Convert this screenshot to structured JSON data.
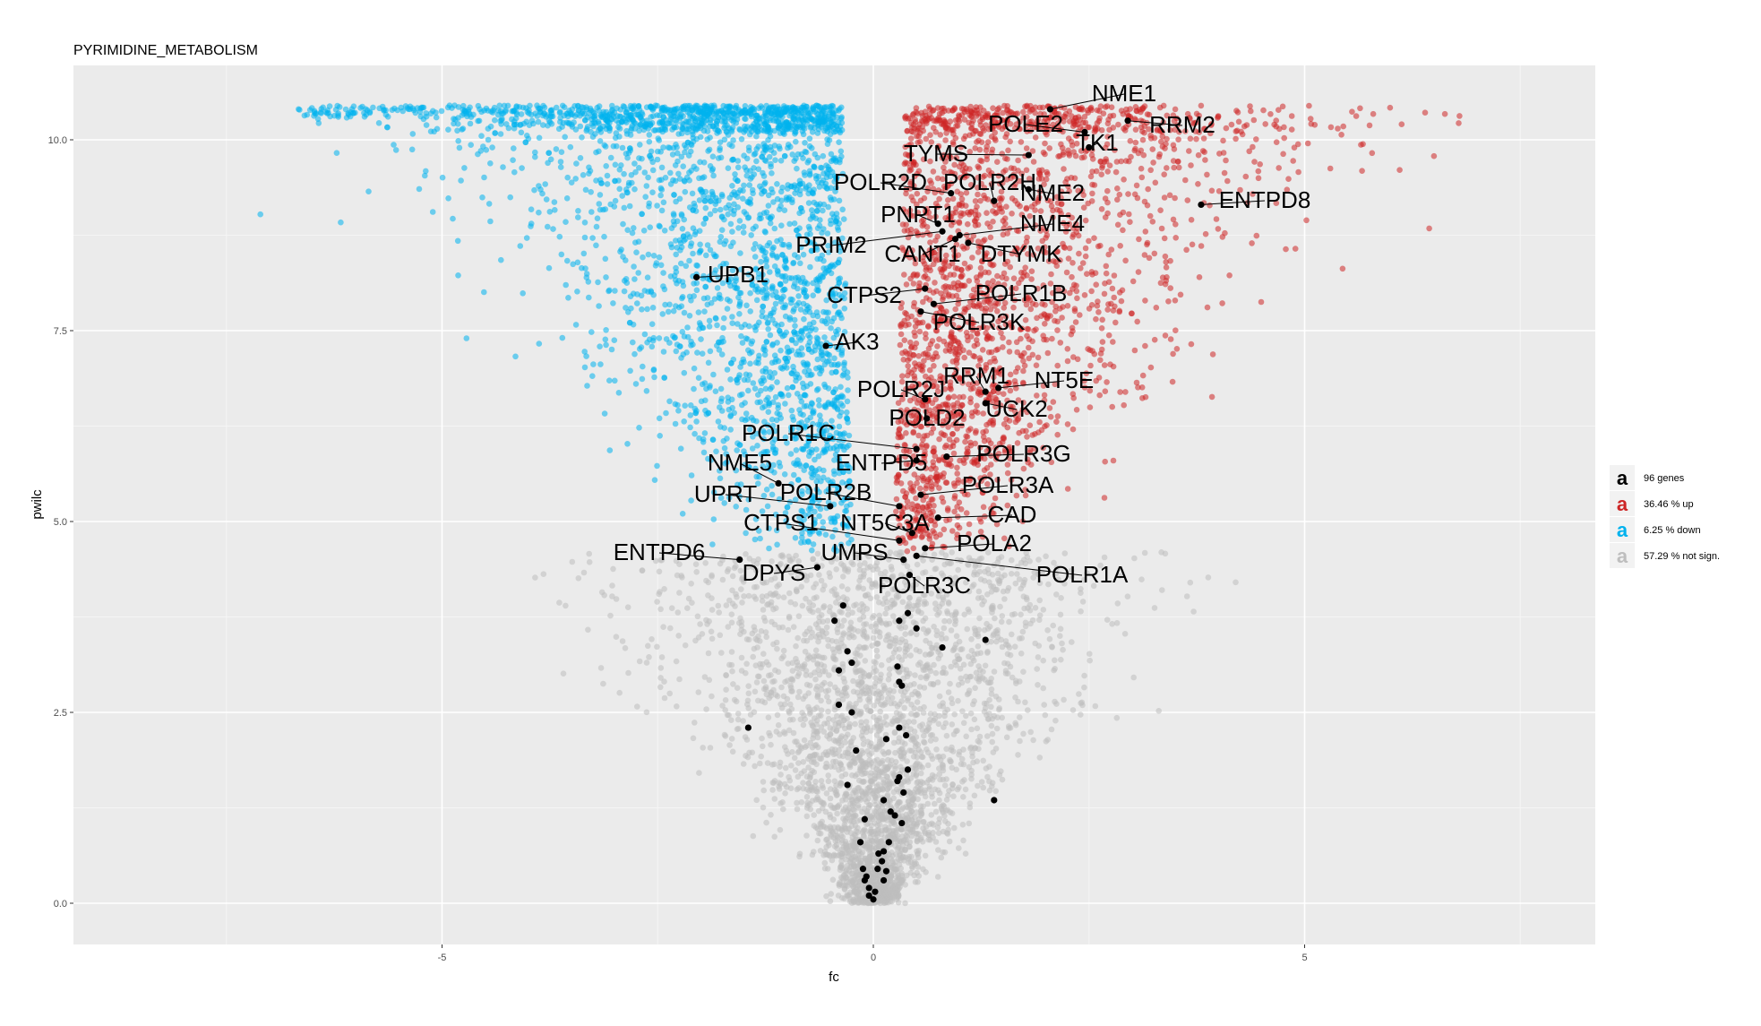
{
  "chart_data": {
    "type": "scatter",
    "title": "PYRIMIDINE_METABOLISM",
    "xlabel": "fc",
    "ylabel": "pwilc",
    "xlim": [
      -9.25,
      8.3
    ],
    "ylim": [
      -0.5,
      11.0
    ],
    "x_ticks": [
      {
        "value": -5,
        "label": "-5"
      },
      {
        "value": 0,
        "label": "0"
      },
      {
        "value": 5,
        "label": "5"
      }
    ],
    "y_ticks": [
      {
        "value": 0.0,
        "label": "0.0"
      },
      {
        "value": 2.5,
        "label": "2.5"
      },
      {
        "value": 5.0,
        "label": "5.0"
      },
      {
        "value": 7.5,
        "label": "7.5"
      },
      {
        "value": 10.0,
        "label": "10.0"
      }
    ],
    "grid": true,
    "legend_position": "right",
    "legend": [
      {
        "label": "96 genes",
        "color": "#000000"
      },
      {
        "label": "36.46 % up",
        "color": "#cd2626"
      },
      {
        "label": "6.25 % down",
        "color": "#00b2ee"
      },
      {
        "label": "57.29 % not sign.",
        "color": "#bebebe"
      }
    ],
    "colors": {
      "up": "#cd2626",
      "down": "#00b2ee",
      "not_sign": "#bebebe",
      "genes": "#000000"
    },
    "highlighted_genes": [
      {
        "name": "NME1",
        "x": 2.05,
        "y": 10.4
      },
      {
        "name": "POLE2",
        "x": 2.45,
        "y": 10.1
      },
      {
        "name": "RRM2",
        "x": 2.95,
        "y": 10.25
      },
      {
        "name": "TK1",
        "x": 2.5,
        "y": 9.9
      },
      {
        "name": "TYMS",
        "x": 1.8,
        "y": 9.8
      },
      {
        "name": "POLR2D",
        "x": 0.9,
        "y": 9.3
      },
      {
        "name": "POLR2H",
        "x": 1.4,
        "y": 9.2
      },
      {
        "name": "NME2",
        "x": 1.8,
        "y": 9.35
      },
      {
        "name": "ENTPD8",
        "x": 3.8,
        "y": 9.15
      },
      {
        "name": "PNPT1",
        "x": 0.75,
        "y": 8.9
      },
      {
        "name": "NME4",
        "x": 1.0,
        "y": 8.75
      },
      {
        "name": "PRIM2",
        "x": 0.8,
        "y": 8.8
      },
      {
        "name": "CANT1",
        "x": 0.95,
        "y": 8.7
      },
      {
        "name": "DTYMK",
        "x": 1.1,
        "y": 8.65
      },
      {
        "name": "UPB1",
        "x": -2.05,
        "y": 8.2
      },
      {
        "name": "CTPS2",
        "x": 0.6,
        "y": 8.05
      },
      {
        "name": "POLR1B",
        "x": 0.7,
        "y": 7.85
      },
      {
        "name": "POLR3K",
        "x": 0.55,
        "y": 7.75
      },
      {
        "name": "AK3",
        "x": -0.55,
        "y": 7.3
      },
      {
        "name": "RRM1",
        "x": 1.3,
        "y": 6.7
      },
      {
        "name": "NT5E",
        "x": 1.45,
        "y": 6.75
      },
      {
        "name": "POLR2J",
        "x": 0.6,
        "y": 6.6
      },
      {
        "name": "UCK2",
        "x": 1.3,
        "y": 6.55
      },
      {
        "name": "POLD2",
        "x": 0.62,
        "y": 6.35
      },
      {
        "name": "POLR1C",
        "x": 0.5,
        "y": 5.95
      },
      {
        "name": "POLR3G",
        "x": 0.85,
        "y": 5.85
      },
      {
        "name": "ENTPD5",
        "x": 0.5,
        "y": 5.8
      },
      {
        "name": "NME5",
        "x": -1.1,
        "y": 5.5
      },
      {
        "name": "POLR3A",
        "x": 0.55,
        "y": 5.35
      },
      {
        "name": "UPRT",
        "x": -0.5,
        "y": 5.2
      },
      {
        "name": "POLR2B",
        "x": 0.3,
        "y": 5.2
      },
      {
        "name": "CAD",
        "x": 0.75,
        "y": 5.05
      },
      {
        "name": "CTPS1",
        "x": 0.3,
        "y": 4.75
      },
      {
        "name": "NT5C3A",
        "x": 0.45,
        "y": 4.85
      },
      {
        "name": "POLA2",
        "x": 0.6,
        "y": 4.65
      },
      {
        "name": "ENTPD6",
        "x": -1.55,
        "y": 4.5
      },
      {
        "name": "UMPS",
        "x": 0.35,
        "y": 4.5
      },
      {
        "name": "POLR1A",
        "x": 0.5,
        "y": 4.55
      },
      {
        "name": "DPYS",
        "x": -0.65,
        "y": 4.4
      },
      {
        "name": "POLR3C",
        "x": 0.42,
        "y": 4.3
      }
    ],
    "label_positions_note": "",
    "extra_gene_points": [
      {
        "x": 0.3,
        "y": 3.7
      },
      {
        "x": 0.4,
        "y": 3.8
      },
      {
        "x": 0.5,
        "y": 3.6
      },
      {
        "x": -0.35,
        "y": 3.9
      },
      {
        "x": -0.45,
        "y": 3.7
      },
      {
        "x": 1.3,
        "y": 3.45
      },
      {
        "x": 0.8,
        "y": 3.35
      },
      {
        "x": -0.3,
        "y": 3.3
      },
      {
        "x": 0.28,
        "y": 3.1
      },
      {
        "x": -0.25,
        "y": 3.15
      },
      {
        "x": -0.4,
        "y": 3.05
      },
      {
        "x": 0.3,
        "y": 2.9
      },
      {
        "x": 0.33,
        "y": 2.85
      },
      {
        "x": -0.4,
        "y": 2.6
      },
      {
        "x": -0.25,
        "y": 2.5
      },
      {
        "x": 0.3,
        "y": 2.3
      },
      {
        "x": 0.38,
        "y": 2.2
      },
      {
        "x": -1.45,
        "y": 2.3
      },
      {
        "x": 0.15,
        "y": 2.15
      },
      {
        "x": -0.2,
        "y": 2.0
      },
      {
        "x": 0.4,
        "y": 1.75
      },
      {
        "x": 0.28,
        "y": 1.6
      },
      {
        "x": 0.3,
        "y": 1.65
      },
      {
        "x": -0.3,
        "y": 1.55
      },
      {
        "x": 0.35,
        "y": 1.45
      },
      {
        "x": 0.12,
        "y": 1.35
      },
      {
        "x": 1.4,
        "y": 1.35
      },
      {
        "x": 0.2,
        "y": 1.2
      },
      {
        "x": 0.25,
        "y": 1.15
      },
      {
        "x": 0.33,
        "y": 1.05
      },
      {
        "x": -0.1,
        "y": 1.1
      },
      {
        "x": -0.15,
        "y": 0.8
      },
      {
        "x": 0.18,
        "y": 0.8
      },
      {
        "x": 0.12,
        "y": 0.68
      },
      {
        "x": 0.06,
        "y": 0.65
      },
      {
        "x": 0.1,
        "y": 0.55
      },
      {
        "x": 0.05,
        "y": 0.45
      },
      {
        "x": -0.12,
        "y": 0.45
      },
      {
        "x": -0.08,
        "y": 0.35
      },
      {
        "x": 0.15,
        "y": 0.42
      },
      {
        "x": -0.1,
        "y": 0.3
      },
      {
        "x": 0.12,
        "y": 0.3
      },
      {
        "x": -0.05,
        "y": 0.2
      },
      {
        "x": -0.05,
        "y": 0.1
      },
      {
        "x": 0.0,
        "y": 0.05
      },
      {
        "x": 0.02,
        "y": 0.15
      }
    ]
  }
}
